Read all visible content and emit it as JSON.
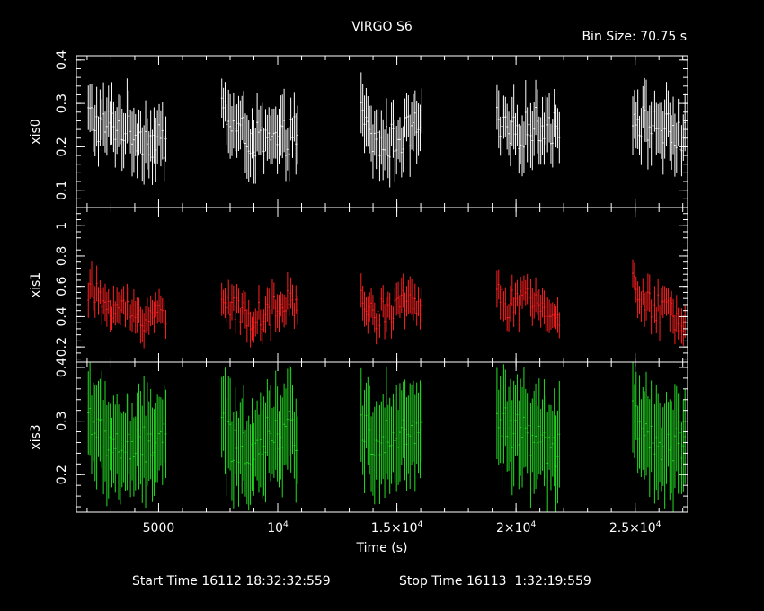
{
  "title": "VIRGO S6",
  "bin_size_label": "Bin Size: 70.75 s",
  "footer": {
    "start_time": "Start Time 16112 18:32:32:559",
    "stop_time": "Stop Time 16113  1:32:19:559"
  },
  "chart_data": {
    "type": "scatter",
    "xlabel": "Time (s)",
    "xlim": [
      1550,
      27200
    ],
    "x_ticks": [
      {
        "value": 5000,
        "mantissa": "5000",
        "exponent": ""
      },
      {
        "value": 10000,
        "mantissa": "10",
        "exponent": "4"
      },
      {
        "value": 15000,
        "mantissa": "1.5×10",
        "exponent": "4"
      },
      {
        "value": 20000,
        "mantissa": "2×10",
        "exponent": "4"
      },
      {
        "value": 25000,
        "mantissa": "2.5×10",
        "exponent": "4"
      }
    ],
    "panels": [
      {
        "name": "xis0",
        "ylabel": "xis0",
        "color": "#ffffff",
        "ylim": [
          0.06,
          0.41
        ],
        "y_ticks": [
          0.1,
          0.2,
          0.3,
          0.4
        ],
        "y_tick_labels": [
          "0.1",
          "0.2",
          "0.3",
          "0.4"
        ],
        "mean": 0.23,
        "spread": 0.035,
        "err": 0.06
      },
      {
        "name": "xis1",
        "ylabel": "xis1",
        "color": "#ff2020",
        "ylim": [
          0.1,
          1.12
        ],
        "y_ticks": [
          0.2,
          0.4,
          0.6,
          0.8,
          1.0
        ],
        "y_tick_labels": [
          "0.2",
          "0.4",
          "0.6",
          "0.8",
          "1"
        ],
        "mean": 0.45,
        "spread": 0.08,
        "err": 0.1
      },
      {
        "name": "xis3",
        "ylabel": "xis3",
        "color": "#22dd22",
        "ylim": [
          0.13,
          0.41
        ],
        "y_ticks": [
          0.2,
          0.3,
          0.4
        ],
        "y_tick_labels": [
          "0.2",
          "0.3",
          "0.4"
        ],
        "mean": 0.265,
        "spread": 0.03,
        "err": 0.08
      }
    ],
    "segments": [
      {
        "start": 2050,
        "end": 5350
      },
      {
        "start": 7650,
        "end": 10900
      },
      {
        "start": 13500,
        "end": 16100
      },
      {
        "start": 19200,
        "end": 21850
      },
      {
        "start": 24900,
        "end": 27100
      }
    ],
    "bin_size_s": 70.75
  }
}
